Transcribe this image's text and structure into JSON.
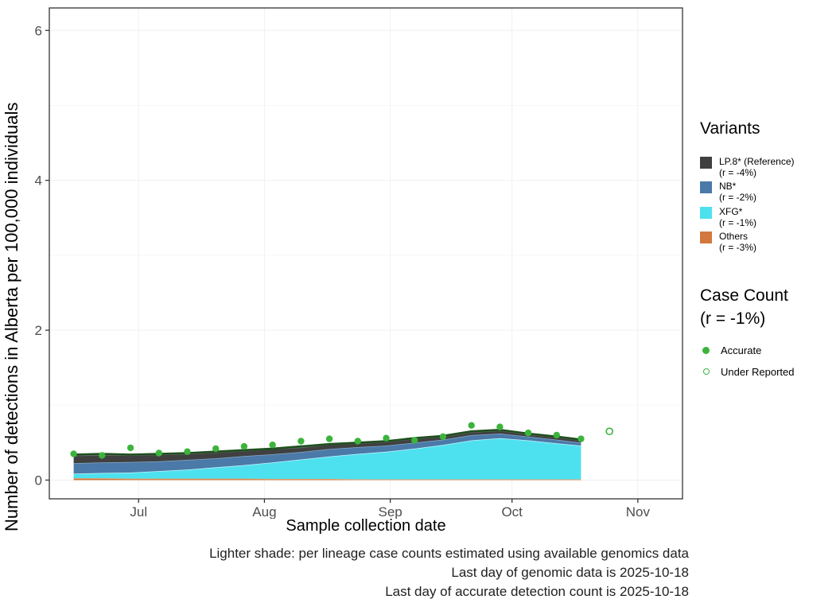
{
  "figure": {
    "ylabel": "Number of detections in Alberta per 100,000 individuals",
    "xlabel": "Sample collection date",
    "caption_lines": [
      "Lighter shade: per lineage case counts estimated using available genomics data",
      "Last day of genomic data is 2025-10-18",
      "Last day of accurate detection count is 2025-10-18"
    ]
  },
  "legend": {
    "variants_title": "Variants",
    "variants": [
      {
        "label": "LP.8* (Reference)",
        "r_label": "(r = -4%)",
        "color": "#404040"
      },
      {
        "label": "NB*",
        "r_label": "(r = -2%)",
        "color": "#4b79a8"
      },
      {
        "label": "XFG*",
        "r_label": "(r = -1%)",
        "color": "#4de1ef"
      },
      {
        "label": "Others",
        "r_label": "(r = -3%)",
        "color": "#d2773d"
      }
    ],
    "case_count_title": "Case Count",
    "case_count_r": "(r = -1%)",
    "case_items": [
      {
        "label": "Accurate",
        "marker": "filled"
      },
      {
        "label": "Under Reported",
        "marker": "open"
      }
    ],
    "case_color": "#3cb43c"
  },
  "chart_data": {
    "type": "area",
    "title": "",
    "xlabel": "Sample collection date",
    "ylabel": "Number of detections in Alberta per 100,000 individuals",
    "x_axis": {
      "unit": "days since 2025-06-01",
      "range": [
        8,
        164
      ],
      "ticks": [
        {
          "day": 30,
          "label": "Jul"
        },
        {
          "day": 61,
          "label": "Aug"
        },
        {
          "day": 92,
          "label": "Sep"
        },
        {
          "day": 122,
          "label": "Oct"
        },
        {
          "day": 153,
          "label": "Nov"
        }
      ]
    },
    "y_axis": {
      "range": [
        -0.25,
        6.3
      ],
      "ticks": [
        0,
        2,
        4,
        6
      ]
    },
    "stack_days": [
      14,
      21,
      28,
      35,
      42,
      49,
      56,
      63,
      70,
      77,
      84,
      91,
      98,
      105,
      112,
      119,
      126,
      133,
      139
    ],
    "series": [
      {
        "name": "Others",
        "r": "-3%",
        "color": "#d2773d",
        "edge_color": "#eda56e",
        "values": [
          0.025,
          0.025,
          0.02,
          0.02,
          0.02,
          0.02,
          0.02,
          0.015,
          0.015,
          0.015,
          0.01,
          0.01,
          0.01,
          0.01,
          0.01,
          0.01,
          0.01,
          0.01,
          0.01
        ]
      },
      {
        "name": "XFG*",
        "r": "-1%",
        "color": "#4de1ef",
        "edge_color": "#c6f5f9",
        "values": [
          0.06,
          0.07,
          0.08,
          0.1,
          0.12,
          0.15,
          0.18,
          0.22,
          0.26,
          0.3,
          0.34,
          0.37,
          0.41,
          0.46,
          0.52,
          0.55,
          0.52,
          0.48,
          0.45
        ]
      },
      {
        "name": "NB*",
        "r": "-2%",
        "color": "#4b79a8",
        "edge_color": "#88abc9",
        "values": [
          0.14,
          0.14,
          0.14,
          0.13,
          0.13,
          0.12,
          0.12,
          0.11,
          0.1,
          0.1,
          0.09,
          0.08,
          0.08,
          0.07,
          0.07,
          0.06,
          0.05,
          0.05,
          0.04
        ]
      },
      {
        "name": "LP.8* (Reference)",
        "r": "-4%",
        "color": "#404040",
        "edge_color": "#6e6e6e",
        "values": [
          0.1,
          0.1,
          0.09,
          0.09,
          0.08,
          0.08,
          0.07,
          0.07,
          0.06,
          0.06,
          0.05,
          0.05,
          0.05,
          0.04,
          0.04,
          0.04,
          0.03,
          0.03,
          0.03
        ]
      }
    ],
    "fit_line": {
      "name": "case-count-fit",
      "color": "#1e4f1e",
      "days": [
        14,
        21,
        28,
        35,
        42,
        49,
        56,
        63,
        70,
        77,
        84,
        91,
        98,
        105,
        112,
        119,
        126,
        133,
        139
      ],
      "values": [
        0.34,
        0.35,
        0.34,
        0.35,
        0.36,
        0.38,
        0.4,
        0.42,
        0.45,
        0.48,
        0.5,
        0.52,
        0.56,
        0.59,
        0.65,
        0.67,
        0.62,
        0.58,
        0.54
      ]
    },
    "points": {
      "accurate": {
        "days": [
          14,
          21,
          28,
          35,
          42,
          49,
          56,
          63,
          70,
          77,
          84,
          91,
          98,
          105,
          112,
          119,
          126,
          133,
          139
        ],
        "values": [
          0.35,
          0.33,
          0.43,
          0.36,
          0.38,
          0.42,
          0.45,
          0.47,
          0.52,
          0.55,
          0.52,
          0.56,
          0.53,
          0.58,
          0.73,
          0.71,
          0.63,
          0.6,
          0.55
        ]
      },
      "under_reported": {
        "days": [
          146
        ],
        "values": [
          0.65
        ]
      }
    }
  }
}
